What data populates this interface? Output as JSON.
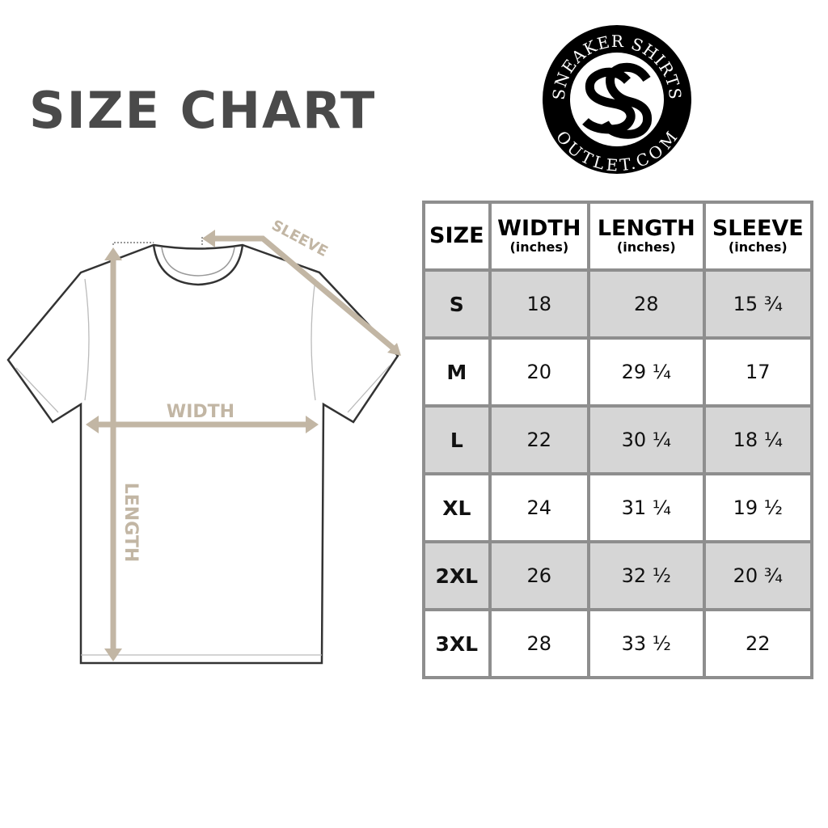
{
  "title": "SIZE CHART",
  "logo": {
    "top_text": "SNEAKER SHIRTS",
    "bottom_text": "OUTLET.COM",
    "monogram": "SS"
  },
  "diagram": {
    "sleeve_label": "SLEEVE",
    "width_label": "WIDTH",
    "length_label": "LENGTH",
    "arrow_color": "#c2b6a4"
  },
  "table": {
    "headers": [
      {
        "label": "SIZE",
        "unit": ""
      },
      {
        "label": "WIDTH",
        "unit": "(inches)"
      },
      {
        "label": "LENGTH",
        "unit": "(inches)"
      },
      {
        "label": "SLEEVE",
        "unit": "(inches)"
      }
    ],
    "rows": [
      [
        "S",
        "18",
        "28",
        "15 ¾"
      ],
      [
        "M",
        "20",
        "29 ¼",
        "17"
      ],
      [
        "L",
        "22",
        "30 ¼",
        "18 ¼"
      ],
      [
        "XL",
        "24",
        "31 ¼",
        "19 ½"
      ],
      [
        "2XL",
        "26",
        "32 ½",
        "20 ¾"
      ],
      [
        "3XL",
        "28",
        "33 ½",
        "22"
      ]
    ]
  }
}
